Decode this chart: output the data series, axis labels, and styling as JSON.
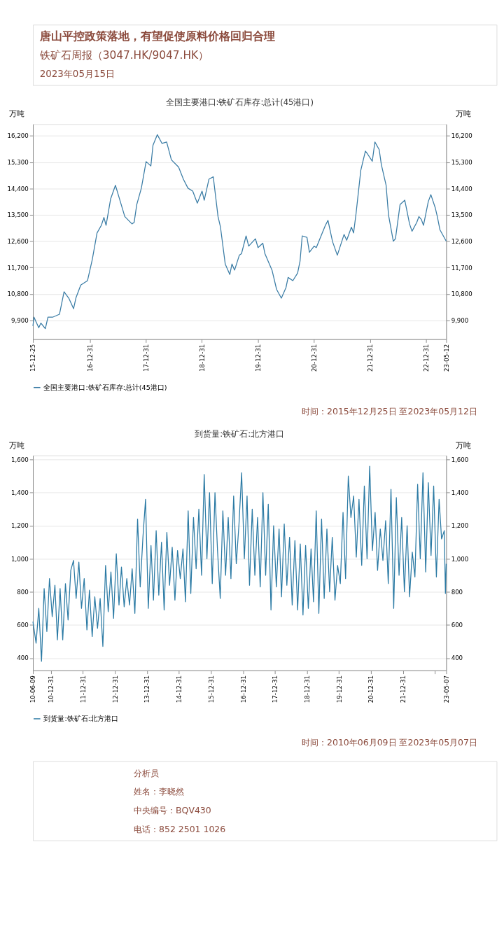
{
  "chart_data": [
    {
      "type": "other",
      "title": "唐山平控政策落地，有望促使原料价格回归合理",
      "subtitle": "铁矿石周报（3047.HK/9047.HK）",
      "annotations": [
        "2023年05月15日"
      ]
    },
    {
      "type": "line",
      "title": "全国主要港口:铁矿石库存:总计(45港口)",
      "ylabel": "万吨",
      "y2label": "万吨",
      "grid": "y",
      "legend": "bottom",
      "marker": "none",
      "line_style": "solid",
      "xlim": [
        "2015-12-25",
        "2023-05-12"
      ],
      "xticks": [
        {
          "value": "2015-12-25",
          "label": "15-12-25"
        },
        {
          "value": "2016-12-31",
          "label": "16-12-31"
        },
        {
          "value": "2017-12-31",
          "label": "17-12-31"
        },
        {
          "value": "2018-12-31",
          "label": "18-12-31"
        },
        {
          "value": "2019-12-31",
          "label": "19-12-31"
        },
        {
          "value": "2020-12-31",
          "label": "20-12-31"
        },
        {
          "value": "2021-12-31",
          "label": "21-12-31"
        },
        {
          "value": "2022-12-31",
          "label": "22-12-31"
        },
        {
          "value": "2023-05-12",
          "label": "23-05-12"
        }
      ],
      "ylim": [
        9250,
        16600
      ],
      "yticks": [
        {
          "value": 9900,
          "label": "9,900"
        },
        {
          "value": 10800,
          "label": "10,800"
        },
        {
          "value": 11700,
          "label": "11,700"
        },
        {
          "value": 12600,
          "label": "12,600"
        },
        {
          "value": 13500,
          "label": "13,500"
        },
        {
          "value": 14400,
          "label": "14,400"
        },
        {
          "value": 15300,
          "label": "15,300"
        },
        {
          "value": 16200,
          "label": "16,200"
        }
      ],
      "y2lim": [
        9250,
        16600
      ],
      "y2ticks": [
        {
          "value": 9900,
          "label": "9,900"
        },
        {
          "value": 10800,
          "label": "10,800"
        },
        {
          "value": 11700,
          "label": "11,700"
        },
        {
          "value": 12600,
          "label": "12,600"
        },
        {
          "value": 13500,
          "label": "13,500"
        },
        {
          "value": 14400,
          "label": "14,400"
        },
        {
          "value": 15300,
          "label": "15,300"
        },
        {
          "value": 16200,
          "label": "16,200"
        }
      ],
      "x": [
        "2015-12-25",
        "2016-01-01",
        "2016-02-01",
        "2016-02-15",
        "2016-03-15",
        "2016-04-01",
        "2016-05-01",
        "2016-06-15",
        "2016-07-15",
        "2016-08-15",
        "2016-09-15",
        "2016-10-01",
        "2016-11-01",
        "2016-12-15",
        "2017-01-15",
        "2017-02-15",
        "2017-03-15",
        "2017-04-01",
        "2017-04-15",
        "2017-05-15",
        "2017-06-15",
        "2017-07-01",
        "2017-08-15",
        "2017-10-01",
        "2017-10-15",
        "2017-11-01",
        "2017-12-01",
        "2018-01-01",
        "2018-02-01",
        "2018-02-15",
        "2018-03-15",
        "2018-04-15",
        "2018-05-15",
        "2018-06-15",
        "2018-08-01",
        "2018-09-01",
        "2018-10-01",
        "2018-11-01",
        "2018-12-01",
        "2019-01-01",
        "2019-01-15",
        "2019-02-15",
        "2019-03-15",
        "2019-04-15",
        "2019-05-01",
        "2019-06-01",
        "2019-07-01",
        "2019-07-15",
        "2019-08-01",
        "2019-09-01",
        "2019-09-15",
        "2019-10-15",
        "2019-11-01",
        "2019-12-15",
        "2020-01-01",
        "2020-02-01",
        "2020-02-15",
        "2020-04-01",
        "2020-05-01",
        "2020-06-01",
        "2020-07-01",
        "2020-07-15",
        "2020-08-15",
        "2020-09-15",
        "2020-10-01",
        "2020-10-15",
        "2020-11-15",
        "2020-12-01",
        "2021-01-01",
        "2021-01-15",
        "2021-02-15",
        "2021-03-15",
        "2021-04-01",
        "2021-05-01",
        "2021-06-01",
        "2021-07-15",
        "2021-08-01",
        "2021-09-01",
        "2021-09-15",
        "2021-10-01",
        "2021-11-01",
        "2021-12-01",
        "2021-12-15",
        "2022-01-15",
        "2022-02-01",
        "2022-03-01",
        "2022-03-15",
        "2022-04-15",
        "2022-05-01",
        "2022-06-01",
        "2022-06-15",
        "2022-07-15",
        "2022-08-15",
        "2022-09-15",
        "2022-10-01",
        "2022-11-01",
        "2022-11-15",
        "2022-12-01",
        "2022-12-15",
        "2023-01-15",
        "2023-02-01",
        "2023-03-01",
        "2023-03-15",
        "2023-04-01",
        "2023-05-12"
      ],
      "series": [
        {
          "name": "全国主要港口:铁矿石库存:总计(45港口)",
          "color": "#3a7ca5",
          "values": [
            9700,
            10000,
            9640,
            9800,
            9610,
            10000,
            10000,
            10100,
            10870,
            10650,
            10290,
            10670,
            11100,
            11250,
            11970,
            12880,
            13140,
            13410,
            13140,
            14050,
            14510,
            14230,
            13440,
            13190,
            13240,
            13850,
            14410,
            15320,
            15170,
            15880,
            16240,
            15940,
            15990,
            15380,
            15130,
            14720,
            14410,
            14310,
            13900,
            14310,
            14000,
            14720,
            14800,
            13440,
            13080,
            11820,
            11460,
            11820,
            11610,
            12120,
            12170,
            12780,
            12430,
            12680,
            12380,
            12530,
            12170,
            11610,
            10950,
            10650,
            11010,
            11360,
            11250,
            11510,
            11920,
            12780,
            12730,
            12220,
            12430,
            12380,
            12780,
            13140,
            13310,
            12580,
            12120,
            12830,
            12630,
            13080,
            12880,
            13540,
            15020,
            15680,
            15580,
            15330,
            15990,
            15730,
            15220,
            14510,
            13490,
            12600,
            12680,
            13850,
            14000,
            13190,
            12940,
            13240,
            13440,
            13340,
            13140,
            13950,
            14190,
            13750,
            13440,
            12990,
            12600
          ]
        }
      ],
      "annotations": [
        "时间：2015年12月25日 至2023年05月12日"
      ]
    },
    {
      "type": "line",
      "title": "到货量:铁矿石:北方港口",
      "ylabel": "万吨",
      "y2label": "万吨",
      "grid": "y",
      "legend": "bottom",
      "marker": "none",
      "line_style": "solid",
      "xlim": [
        "2010-06-09",
        "2023-05-07"
      ],
      "xticks": [
        {
          "value": "2010-06-09",
          "label": "10-06-09"
        },
        {
          "value": "2010-12-31",
          "label": "10-12-31"
        },
        {
          "value": "2011-12-31",
          "label": "11-12-31"
        },
        {
          "value": "2012-12-31",
          "label": "12-12-31"
        },
        {
          "value": "2013-12-31",
          "label": "13-12-31"
        },
        {
          "value": "2014-12-31",
          "label": "14-12-31"
        },
        {
          "value": "2015-12-31",
          "label": "15-12-31"
        },
        {
          "value": "2016-12-31",
          "label": "16-12-31"
        },
        {
          "value": "2017-12-31",
          "label": "17-12-31"
        },
        {
          "value": "2018-12-31",
          "label": "18-12-31"
        },
        {
          "value": "2019-12-31",
          "label": "19-12-31"
        },
        {
          "value": "2020-12-31",
          "label": "20-12-31"
        },
        {
          "value": "2021-12-31",
          "label": "21-12-31"
        },
        {
          "value": "2022-12-31",
          "label": null
        },
        {
          "value": "2023-05-07",
          "label": "23-05-07"
        }
      ],
      "ylim": [
        325,
        1625
      ],
      "yticks": [
        400,
        600,
        800,
        {
          "value": 1000,
          "label": "1,000"
        },
        {
          "value": 1200,
          "label": "1,200"
        },
        {
          "value": 1400,
          "label": "1,400"
        },
        {
          "value": 1600,
          "label": "1,600"
        }
      ],
      "y2lim": [
        325,
        1625
      ],
      "y2ticks": [
        400,
        600,
        800,
        {
          "value": 1000,
          "label": "1,000"
        },
        {
          "value": 1200,
          "label": "1,200"
        },
        {
          "value": 1400,
          "label": "1,400"
        },
        {
          "value": 1600,
          "label": "1,600"
        }
      ],
      "x": [
        "2010-06-09",
        "2010-07-15",
        "2010-08-15",
        "2010-09-15",
        "2010-10-15",
        "2010-11-15",
        "2010-12-15",
        "2011-01-15",
        "2011-02-15",
        "2011-03-15",
        "2011-04-15",
        "2011-05-15",
        "2011-06-15",
        "2011-07-15",
        "2011-08-15",
        "2011-09-15",
        "2011-10-15",
        "2011-11-15",
        "2011-12-15",
        "2012-01-15",
        "2012-02-15",
        "2012-03-15",
        "2012-04-15",
        "2012-05-15",
        "2012-06-15",
        "2012-07-15",
        "2012-08-15",
        "2012-09-15",
        "2012-10-15",
        "2012-11-15",
        "2012-12-15",
        "2013-01-15",
        "2013-02-15",
        "2013-03-15",
        "2013-04-15",
        "2013-05-15",
        "2013-06-15",
        "2013-07-15",
        "2013-08-15",
        "2013-09-15",
        "2013-10-15",
        "2013-11-15",
        "2013-12-15",
        "2014-01-15",
        "2014-02-15",
        "2014-03-15",
        "2014-04-15",
        "2014-05-15",
        "2014-06-15",
        "2014-07-15",
        "2014-08-15",
        "2014-09-15",
        "2014-10-15",
        "2014-11-15",
        "2014-12-15",
        "2015-01-15",
        "2015-02-15",
        "2015-03-15",
        "2015-04-15",
        "2015-05-15",
        "2015-06-15",
        "2015-07-15",
        "2015-08-15",
        "2015-09-15",
        "2015-10-15",
        "2015-11-15",
        "2015-12-15",
        "2016-01-15",
        "2016-02-15",
        "2016-03-15",
        "2016-04-15",
        "2016-05-15",
        "2016-06-15",
        "2016-07-15",
        "2016-08-15",
        "2016-09-15",
        "2016-10-15",
        "2016-11-15",
        "2016-12-15",
        "2017-01-15",
        "2017-02-15",
        "2017-03-15",
        "2017-04-15",
        "2017-05-15",
        "2017-06-15",
        "2017-07-15",
        "2017-08-15",
        "2017-09-15",
        "2017-10-15",
        "2017-11-15",
        "2017-12-15",
        "2018-01-15",
        "2018-02-15",
        "2018-03-15",
        "2018-04-15",
        "2018-05-15",
        "2018-06-15",
        "2018-07-15",
        "2018-08-15",
        "2018-09-15",
        "2018-10-15",
        "2018-11-15",
        "2018-12-15",
        "2019-01-15",
        "2019-02-15",
        "2019-03-15",
        "2019-04-15",
        "2019-05-15",
        "2019-06-15",
        "2019-07-15",
        "2019-08-15",
        "2019-09-15",
        "2019-10-15",
        "2019-11-15",
        "2019-12-15",
        "2020-01-15",
        "2020-02-15",
        "2020-03-15",
        "2020-04-15",
        "2020-05-15",
        "2020-06-15",
        "2020-07-15",
        "2020-08-15",
        "2020-09-15",
        "2020-10-15",
        "2020-11-15",
        "2020-12-15",
        "2021-01-15",
        "2021-02-15",
        "2021-03-15",
        "2021-04-15",
        "2021-05-15",
        "2021-06-15",
        "2021-07-15",
        "2021-08-15",
        "2021-09-15",
        "2021-10-15",
        "2021-11-15",
        "2021-12-15",
        "2022-01-15",
        "2022-02-15",
        "2022-03-15",
        "2022-04-15",
        "2022-05-15",
        "2022-06-15",
        "2022-07-15",
        "2022-08-15",
        "2022-09-15",
        "2022-10-15",
        "2022-11-15",
        "2022-12-15",
        "2023-01-15",
        "2023-02-15",
        "2023-03-15",
        "2023-04-15",
        "2023-04-28",
        "2023-05-07"
      ],
      "series": [
        {
          "name": "到货量:铁矿石:北方港口",
          "color": "#2b7aa4",
          "values": [
            620,
            490,
            700,
            380,
            820,
            560,
            880,
            650,
            840,
            510,
            820,
            510,
            850,
            630,
            930,
            990,
            760,
            980,
            700,
            880,
            570,
            810,
            530,
            770,
            580,
            760,
            470,
            960,
            680,
            920,
            640,
            1030,
            720,
            950,
            710,
            880,
            720,
            940,
            670,
            1240,
            830,
            1130,
            1360,
            700,
            1080,
            750,
            1170,
            780,
            1100,
            690,
            1160,
            840,
            1070,
            750,
            1050,
            880,
            1060,
            740,
            1290,
            790,
            1250,
            940,
            1300,
            900,
            1510,
            1000,
            1400,
            850,
            1400,
            1050,
            760,
            1290,
            900,
            1250,
            880,
            1380,
            970,
            1210,
            1520,
            1000,
            1380,
            840,
            1300,
            900,
            1250,
            830,
            1400,
            900,
            1330,
            690,
            1200,
            830,
            1180,
            770,
            1210,
            840,
            1130,
            720,
            1110,
            690,
            1090,
            660,
            1080,
            700,
            1060,
            740,
            1290,
            670,
            1240,
            760,
            1180,
            800,
            1130,
            750,
            960,
            850,
            1280,
            880,
            1500,
            1250,
            1380,
            1010,
            1360,
            960,
            1440,
            1000,
            1560,
            1050,
            1280,
            930,
            1180,
            990,
            1230,
            850,
            1420,
            700,
            1370,
            900,
            1250,
            800,
            1200,
            770,
            1040,
            890,
            1450,
            1000,
            1520,
            920,
            1460,
            1020,
            1440,
            890,
            1360,
            1120,
            1170,
            790,
            970
          ]
        }
      ],
      "annotations": [
        "时间：2010年06月09日 至2023年05月07日"
      ]
    },
    {
      "type": "other",
      "title": "分析员",
      "annotations": [
        "姓名：李晓然",
        "中央编号：BQV430",
        "电话：852 2501 1026"
      ]
    }
  ]
}
